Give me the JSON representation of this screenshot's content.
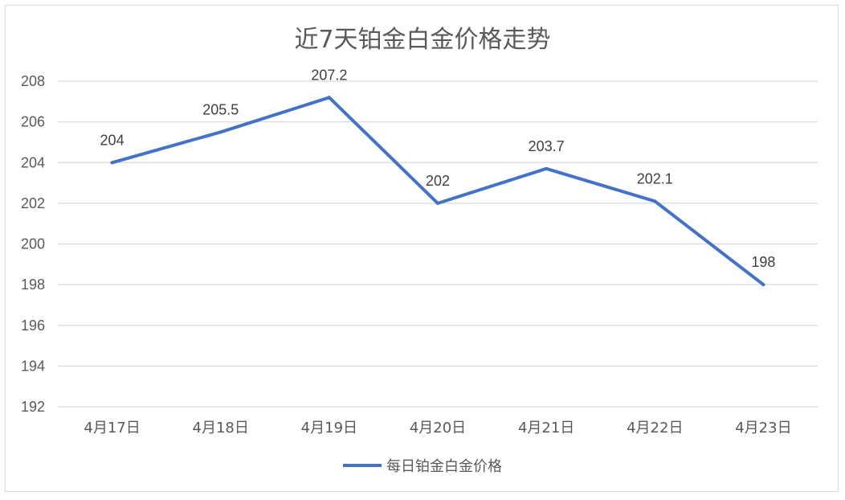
{
  "chart_data": {
    "type": "line",
    "title": "近7天铂金白金价格走势",
    "categories": [
      "4月17日",
      "4月18日",
      "4月19日",
      "4月20日",
      "4月21日",
      "4月22日",
      "4月23日"
    ],
    "series": [
      {
        "name": "每日铂金白金价格",
        "values": [
          204,
          205.5,
          207.2,
          202,
          203.7,
          202.1,
          198
        ],
        "color": "#4472c4"
      }
    ],
    "data_labels": [
      "204",
      "205.5",
      "207.2",
      "202",
      "203.7",
      "202.1",
      "198"
    ],
    "ylim": [
      192,
      208
    ],
    "yticks": [
      "192",
      "194",
      "196",
      "198",
      "200",
      "202",
      "204",
      "206",
      "208"
    ],
    "grid": true,
    "gridline_color": "#d9d9d9",
    "legend_position": "bottom"
  }
}
